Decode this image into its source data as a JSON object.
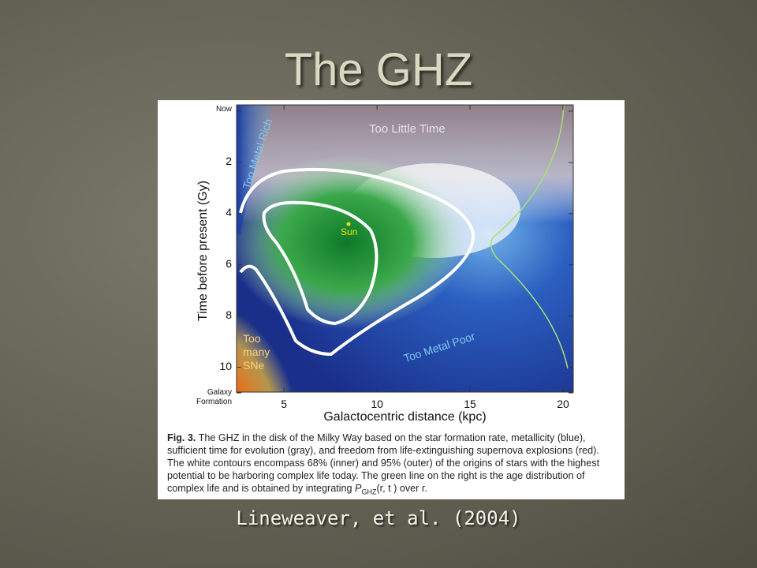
{
  "slide": {
    "title": "The GHZ",
    "citation": "Lineweaver, et al. (2004)",
    "figure": {
      "x_label": "Galactocentric distance (kpc)",
      "y_label": "Time before present (Gy)",
      "xlim": [
        2.45,
        20.55
      ],
      "ylim": [
        0,
        11
      ],
      "xticks": [
        5,
        10,
        15,
        20
      ],
      "yticks": [
        {
          "value": 0,
          "label": "Now"
        },
        2,
        4,
        6,
        8,
        10,
        {
          "value": 11,
          "label": "Galaxy Formation"
        }
      ],
      "regions": {
        "too_little_time": "Too Little Time",
        "too_metal_rich": "Too Metal Rich",
        "sun": "Sun",
        "too_many_sne": "Too many SNe",
        "too_metal_poor": "Too Metal Poor"
      },
      "caption": {
        "label": "Fig. 3.",
        "text": "The GHZ in the disk of the Milky Way based on the star formation rate, metallicity (blue), sufficient time for evolution (gray), and freedom from life-extinguishing supernova explosions (red). The white contours encompass 68% (inner) and 95% (outer) of the origins of stars with the highest potential to be harboring complex life today. The green line on the right is the age distribution of complex life and is obtained by integrating",
        "symbol": "P",
        "subscript": "GHZ",
        "text_after": "(r, t ) over r."
      }
    }
  }
}
